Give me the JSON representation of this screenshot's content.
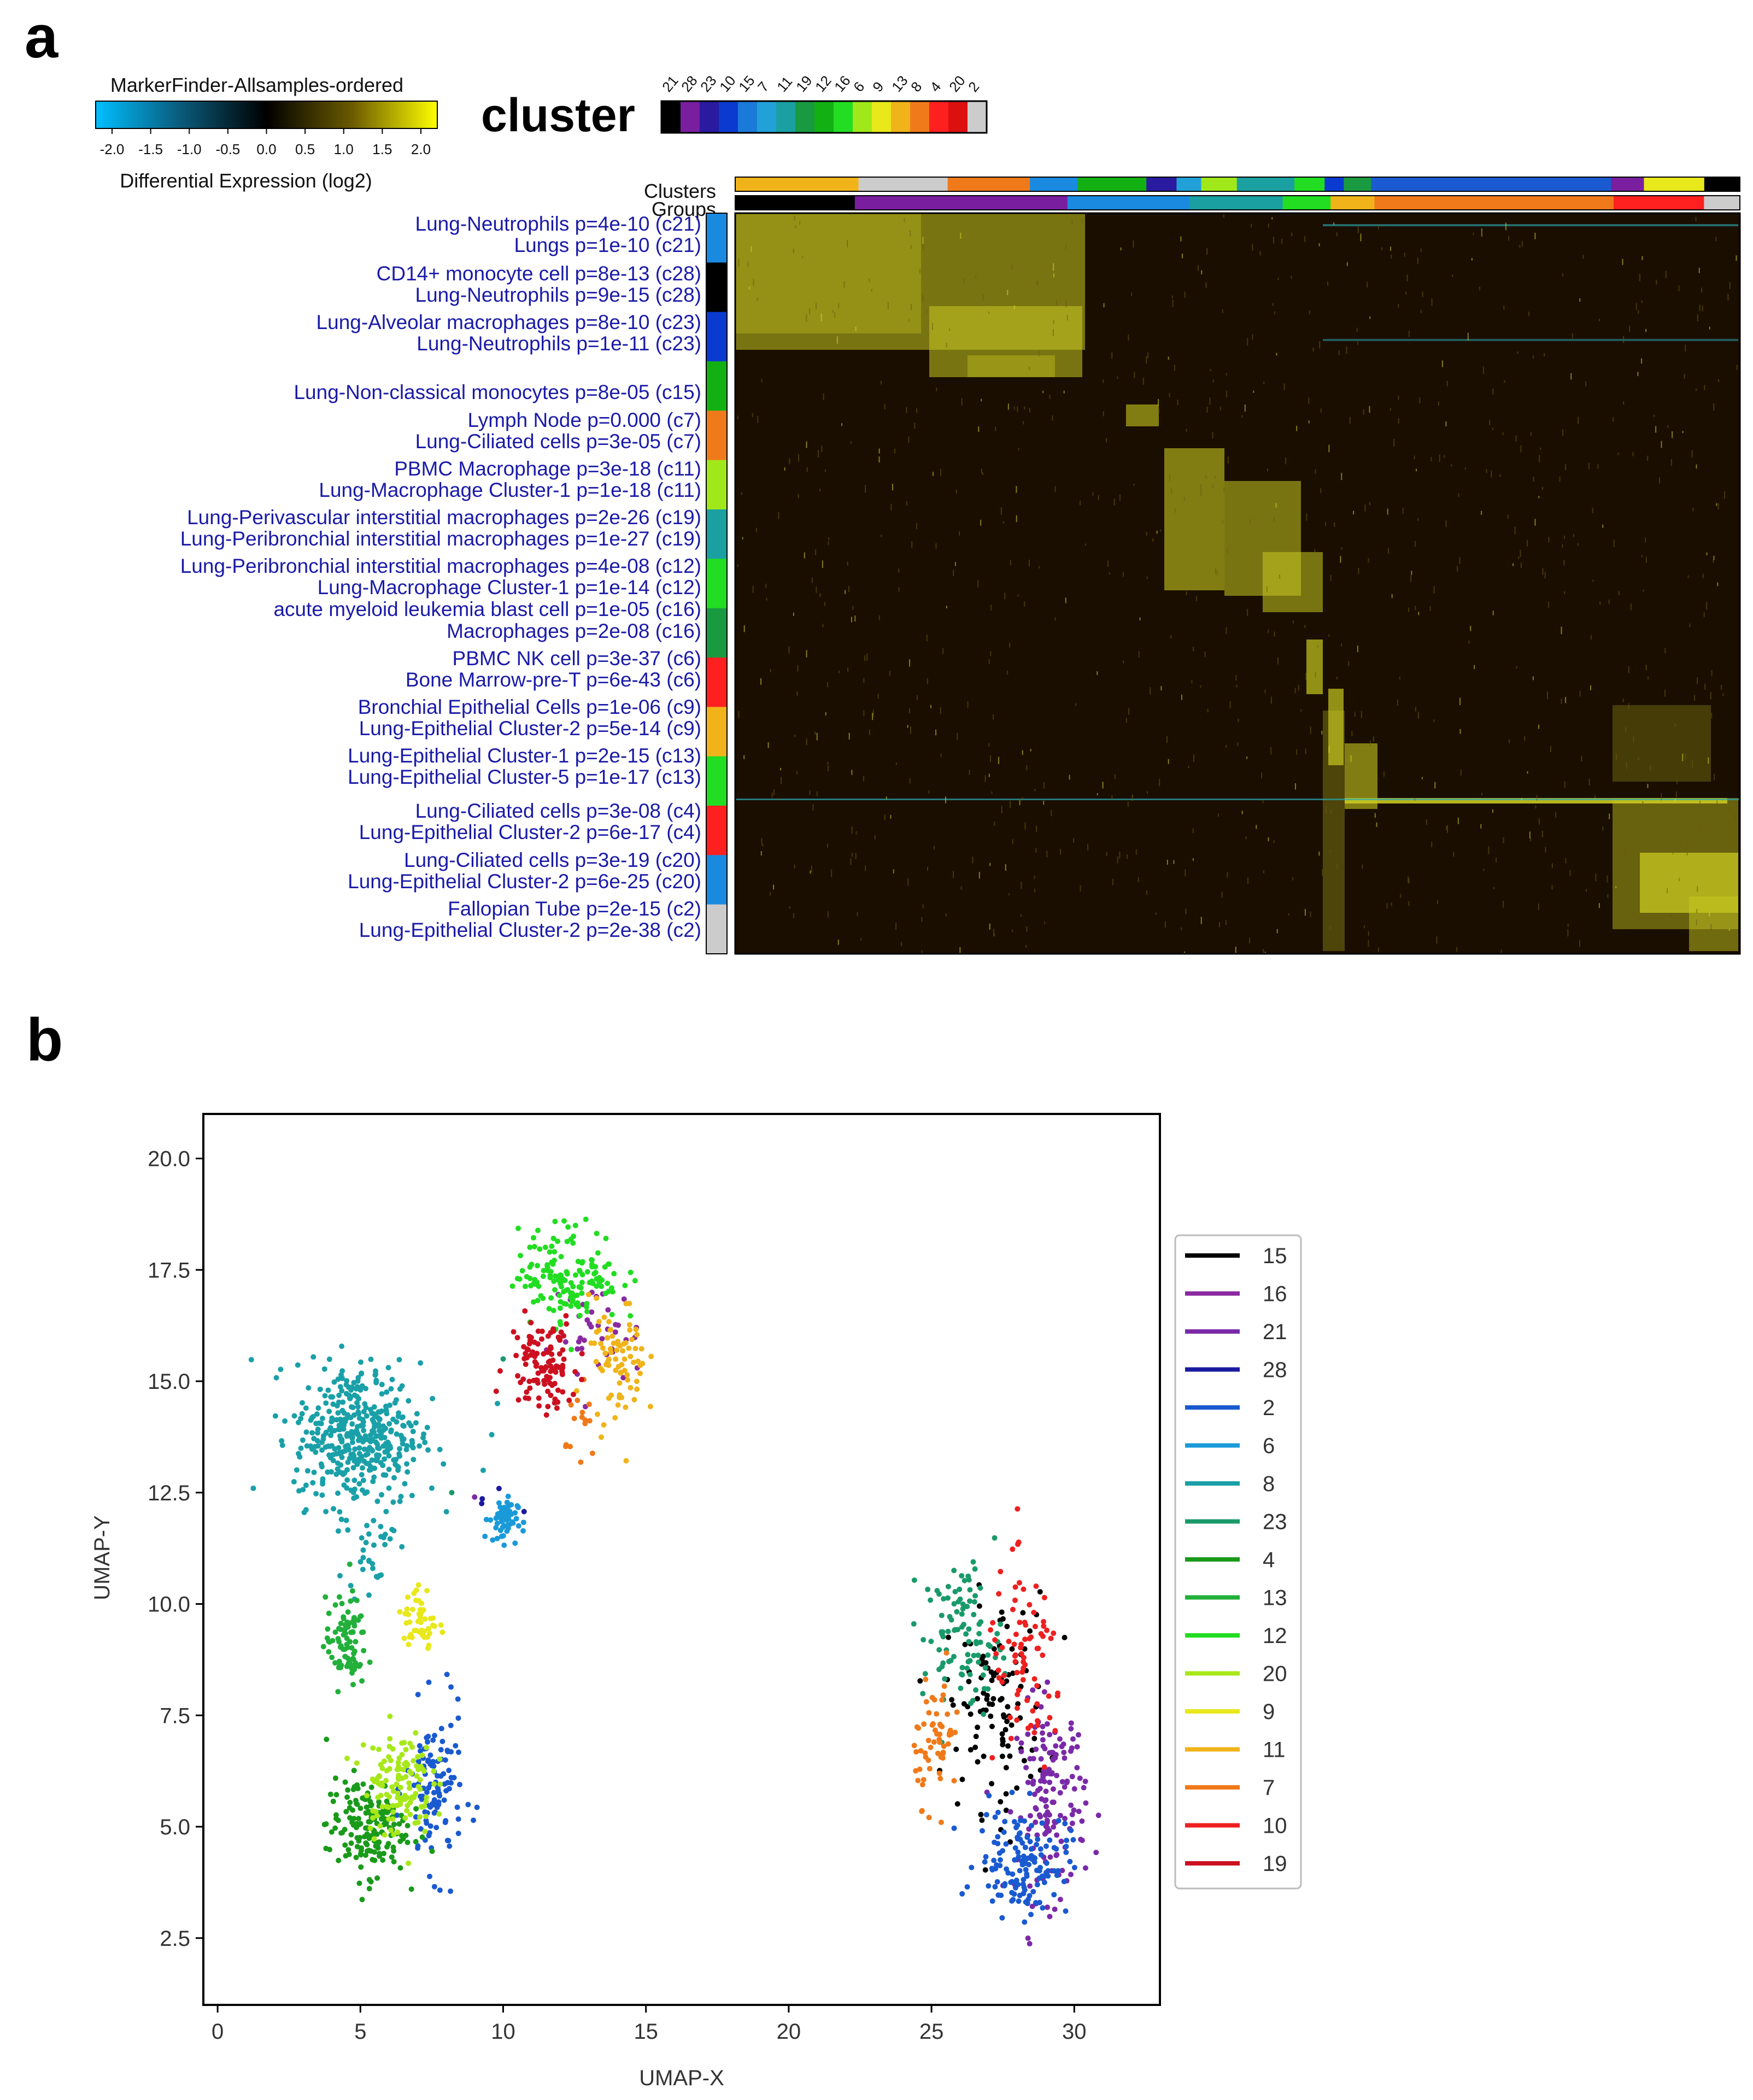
{
  "panel_a": {
    "letter": "a",
    "colorbar": {
      "title": "MarkerFinder-Allsamples-ordered",
      "ticks": [
        "-2.0",
        "-1.5",
        "-1.0",
        "-0.5",
        "0.0",
        "0.5",
        "1.0",
        "1.5",
        "2.0"
      ],
      "label": "Differential Expression (log2)",
      "stops": [
        "#00bfff",
        "#0a5a7a",
        "#000000",
        "#6b5a00",
        "#ffff00"
      ]
    },
    "cluster_key": {
      "title": "cluster",
      "labels": [
        "21",
        "28",
        "23",
        "10",
        "15",
        "7",
        "11",
        "19",
        "12",
        "16",
        "6",
        "9",
        "13",
        "8",
        "4",
        "20",
        "2"
      ],
      "colors": [
        "#000000",
        "#7a1ea0",
        "#2a1aa0",
        "#0a3ad0",
        "#1a7ad8",
        "#22a0d8",
        "#1aa0a0",
        "#1a9a40",
        "#12b012",
        "#22dd22",
        "#a0e81a",
        "#e8e81a",
        "#f0b41a",
        "#f07a1a",
        "#ff2020",
        "#dd1010",
        "#cccccc"
      ]
    },
    "bars": {
      "clusters_label": "Clusters",
      "groups_label": "Groups",
      "clusters": [
        {
          "color": "#f0b41a",
          "w": 90
        },
        {
          "color": "#cccccc",
          "w": 65
        },
        {
          "color": "#f07a1a",
          "w": 60
        },
        {
          "color": "#1a8ae0",
          "w": 35
        },
        {
          "color": "#12b012",
          "w": 50
        },
        {
          "color": "#2a1aa0",
          "w": 22
        },
        {
          "color": "#22a0d8",
          "w": 18
        },
        {
          "color": "#a0e81a",
          "w": 26
        },
        {
          "color": "#1aa0a0",
          "w": 42
        },
        {
          "color": "#22dd22",
          "w": 22
        },
        {
          "color": "#0a3ad0",
          "w": 14
        },
        {
          "color": "#1a9a40",
          "w": 20
        },
        {
          "color": "#1a5ad0",
          "w": 175
        },
        {
          "color": "#7a1ea0",
          "w": 24
        },
        {
          "color": "#e8e81a",
          "w": 44
        },
        {
          "color": "#000000",
          "w": 26
        }
      ],
      "groups": [
        {
          "color": "#000000",
          "w": 90
        },
        {
          "color": "#7a1ea0",
          "w": 160
        },
        {
          "color": "#1a8ae0",
          "w": 92
        },
        {
          "color": "#1aa0a0",
          "w": 70
        },
        {
          "color": "#22dd22",
          "w": 36
        },
        {
          "color": "#f0b41a",
          "w": 33
        },
        {
          "color": "#f07a1a",
          "w": 180
        },
        {
          "color": "#ff2020",
          "w": 68
        },
        {
          "color": "#cccccc",
          "w": 27
        }
      ]
    },
    "row_labels": [
      "Lung-Neutrophils p=4e-10 (c21)",
      "Lungs p=1e-10 (c21)",
      "CD14+ monocyte cell p=8e-13 (c28)",
      "Lung-Neutrophils p=9e-15 (c28)",
      "Lung-Alveolar macrophages p=8e-10 (c23)",
      "Lung-Neutrophils p=1e-11 (c23)",
      "Lung-Non-classical monocytes p=8e-05 (c15)",
      "Lymph Node p=0.000 (c7)",
      "Lung-Ciliated cells p=3e-05 (c7)",
      "PBMC Macrophage p=3e-18 (c11)",
      "Lung-Macrophage Cluster-1 p=1e-18 (c11)",
      "Lung-Perivascular interstitial macrophages p=2e-26 (c19)",
      "Lung-Peribronchial interstitial macrophages p=1e-27 (c19)",
      "Lung-Peribronchial interstitial macrophages p=4e-08 (c12)",
      "Lung-Macrophage Cluster-1 p=1e-14 (c12)",
      "acute myeloid leukemia blast cell p=1e-05 (c16)",
      "Macrophages p=2e-08 (c16)",
      "PBMC NK cell p=3e-37 (c6)",
      "Bone Marrow-pre-T p=6e-43 (c6)",
      "Bronchial Epithelial Cells p=1e-06 (c9)",
      "Lung-Epithelial Cluster-2 p=5e-14 (c9)",
      "Lung-Epithelial Cluster-1 p=2e-15 (c13)",
      "Lung-Epithelial Cluster-5 p=1e-17 (c13)",
      "Lung-Ciliated cells p=3e-08 (c4)",
      "Lung-Epithelial Cluster-2 p=6e-17 (c4)",
      "Lung-Ciliated cells p=3e-19 (c20)",
      "Lung-Epithelial Cluster-2 p=6e-25 (c20)",
      "Fallopian Tube p=2e-15 (c2)",
      "Lung-Epithelial Cluster-2 p=2e-38 (c2)"
    ],
    "row_group_colors": [
      "#1a8ae0",
      "#000000",
      "#0a3ad0",
      "#12b012",
      "#f07a1a",
      "#a0e81a",
      "#1aa0a0",
      "#22dd22",
      "#1a9a40",
      "#ff2020",
      "#f0b41a",
      "#22dd22",
      "#ff2020",
      "#1a8ae0",
      "#cccccc"
    ]
  },
  "panel_b": {
    "letter": "b",
    "chart_data": {
      "type": "scatter",
      "xlabel": "UMAP-X",
      "ylabel": "UMAP-Y",
      "xlim": [
        -0.5,
        33
      ],
      "ylim": [
        1.0,
        21.0
      ],
      "xticks": [
        0,
        5,
        10,
        15,
        20,
        25,
        30
      ],
      "yticks": [
        2.5,
        5.0,
        7.5,
        10.0,
        12.5,
        15.0,
        17.5,
        20.0
      ],
      "xtick_labels": [
        "0",
        "5",
        "10",
        "15",
        "20",
        "25",
        "30"
      ],
      "ytick_labels": [
        "2.5",
        "5.0",
        "7.5",
        "10.0",
        "12.5",
        "15.0",
        "17.5",
        "20.0"
      ],
      "legend_placement": "right",
      "series": [
        {
          "name": "15",
          "color": "#000000",
          "clusters": [
            {
              "cx": 27.3,
              "cy": 7.8,
              "sx": 0.9,
              "sy": 1.2,
              "n": 110
            }
          ]
        },
        {
          "name": "16",
          "color": "#8a2aa0",
          "clusters": [
            {
              "cx": 13.3,
              "cy": 16.0,
              "sx": 0.8,
              "sy": 0.6,
              "n": 40
            }
          ]
        },
        {
          "name": "21",
          "color": "#7a2aa8",
          "clusters": [
            {
              "cx": 29.2,
              "cy": 5.6,
              "sx": 0.6,
              "sy": 1.1,
              "n": 150
            }
          ]
        },
        {
          "name": "28",
          "color": "#1a1aa0",
          "clusters": [
            {
              "cx": 10.0,
              "cy": 12.4,
              "sx": 0.5,
              "sy": 0.2,
              "n": 4
            }
          ]
        },
        {
          "name": "2",
          "color": "#1a5ad0",
          "clusters": [
            {
              "cx": 7.6,
              "cy": 5.8,
              "sx": 0.5,
              "sy": 0.9,
              "n": 120
            },
            {
              "cx": 28.2,
              "cy": 4.2,
              "sx": 0.8,
              "sy": 0.6,
              "n": 140
            }
          ]
        },
        {
          "name": "6",
          "color": "#1a9ad8",
          "clusters": [
            {
              "cx": 10.0,
              "cy": 11.9,
              "sx": 0.25,
              "sy": 0.25,
              "n": 60
            }
          ]
        },
        {
          "name": "8",
          "color": "#1aa0a8",
          "clusters": [
            {
              "cx": 4.9,
              "cy": 13.8,
              "sx": 1.1,
              "sy": 0.8,
              "n": 420
            },
            {
              "cx": 5.4,
              "cy": 11.3,
              "sx": 0.4,
              "sy": 0.5,
              "n": 30
            }
          ]
        },
        {
          "name": "23",
          "color": "#1a9a6a",
          "clusters": [
            {
              "cx": 26.1,
              "cy": 9.3,
              "sx": 0.7,
              "sy": 0.8,
              "n": 100
            }
          ]
        },
        {
          "name": "4",
          "color": "#1a9a1a",
          "clusters": [
            {
              "cx": 5.2,
              "cy": 5.0,
              "sx": 0.7,
              "sy": 0.55,
              "n": 170
            }
          ]
        },
        {
          "name": "13",
          "color": "#22b03a",
          "clusters": [
            {
              "cx": 4.5,
              "cy": 9.1,
              "sx": 0.35,
              "sy": 0.5,
              "n": 90
            }
          ]
        },
        {
          "name": "12",
          "color": "#22dd22",
          "clusters": [
            {
              "cx": 12.3,
              "cy": 17.4,
              "sx": 0.9,
              "sy": 0.55,
              "n": 150
            }
          ]
        },
        {
          "name": "20",
          "color": "#a8e81a",
          "clusters": [
            {
              "cx": 6.3,
              "cy": 6.0,
              "sx": 0.6,
              "sy": 0.6,
              "n": 130
            }
          ]
        },
        {
          "name": "9",
          "color": "#e8e81a",
          "clusters": [
            {
              "cx": 7.1,
              "cy": 9.6,
              "sx": 0.3,
              "sy": 0.4,
              "n": 50
            }
          ]
        },
        {
          "name": "11",
          "color": "#f0b41a",
          "clusters": [
            {
              "cx": 14.0,
              "cy": 15.4,
              "sx": 0.5,
              "sy": 0.7,
              "n": 80
            }
          ]
        },
        {
          "name": "7",
          "color": "#f07a1a",
          "clusters": [
            {
              "cx": 25.2,
              "cy": 7.0,
              "sx": 0.4,
              "sy": 0.7,
              "n": 60
            },
            {
              "cx": 12.8,
              "cy": 14.0,
              "sx": 0.3,
              "sy": 0.5,
              "n": 15
            }
          ]
        },
        {
          "name": "10",
          "color": "#ee2020",
          "clusters": [
            {
              "cx": 28.3,
              "cy": 8.5,
              "sx": 0.7,
              "sy": 1.1,
              "n": 80
            }
          ]
        },
        {
          "name": "19",
          "color": "#cc1020",
          "clusters": [
            {
              "cx": 11.4,
              "cy": 15.4,
              "sx": 0.6,
              "sy": 0.55,
              "n": 110
            }
          ]
        }
      ]
    }
  }
}
